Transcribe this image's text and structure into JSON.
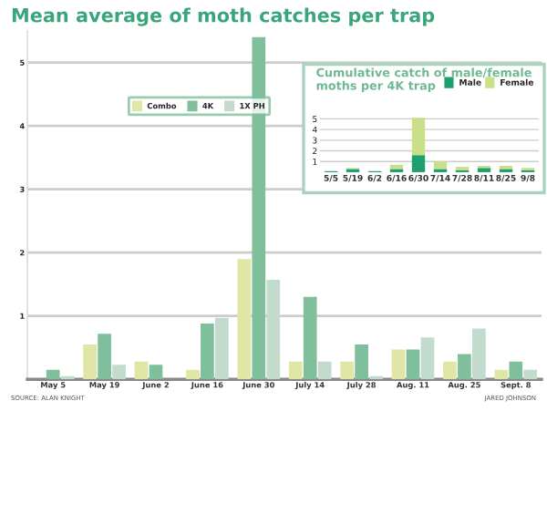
{
  "chart_data": [
    {
      "type": "bar",
      "title": "Mean average of moth catches per trap",
      "categories": [
        "May 5",
        "May 19",
        "June 2",
        "June 16",
        "June 30",
        "July 14",
        "July 28",
        "Aug. 11",
        "Aug. 25",
        "Sept. 8"
      ],
      "series": [
        {
          "name": "Combo",
          "color": "#dfe6a6",
          "values": [
            0,
            0.55,
            0.28,
            0.15,
            1.9,
            0.28,
            0.28,
            0.47,
            0.28,
            0.15
          ]
        },
        {
          "name": "4K",
          "color": "#7fbf9c",
          "values": [
            0.15,
            0.72,
            0.23,
            0.88,
            5.4,
            1.3,
            0.55,
            0.47,
            0.4,
            0.28
          ]
        },
        {
          "name": "1X PH",
          "color": "#c3dbcd",
          "values": [
            0.05,
            0.23,
            0,
            0.97,
            1.57,
            0.28,
            0.05,
            0.66,
            0.8,
            0.15
          ]
        }
      ],
      "ylim": [
        0,
        5.5
      ],
      "yticks": [
        1,
        2,
        3,
        4,
        5
      ],
      "grid": "y",
      "legend": "top left",
      "annotations": [
        "SOURCE: ALAN KNIGHT",
        "JARED JOHNSON"
      ]
    },
    {
      "type": "bar",
      "title": "Cumulative catch of male/female moths per 4K trap",
      "stacked": true,
      "categories": [
        "5/5",
        "5/19",
        "6/2",
        "6/16",
        "6/30",
        "7/14",
        "7/28",
        "8/11",
        "8/25",
        "9/8"
      ],
      "series": [
        {
          "name": "Male",
          "color": "#1f9e6e",
          "values": [
            0.1,
            0.3,
            0.1,
            0.3,
            1.6,
            0.3,
            0.2,
            0.4,
            0.3,
            0.2
          ]
        },
        {
          "name": "Female",
          "color": "#c9df8a",
          "values": [
            0,
            0.1,
            0,
            0.4,
            3.5,
            0.7,
            0.3,
            0.2,
            0.3,
            0.2
          ]
        }
      ],
      "ylim": [
        0,
        5.3
      ],
      "yticks": [
        1,
        2,
        3,
        4,
        5
      ],
      "grid": "y",
      "legend": "top right"
    }
  ]
}
